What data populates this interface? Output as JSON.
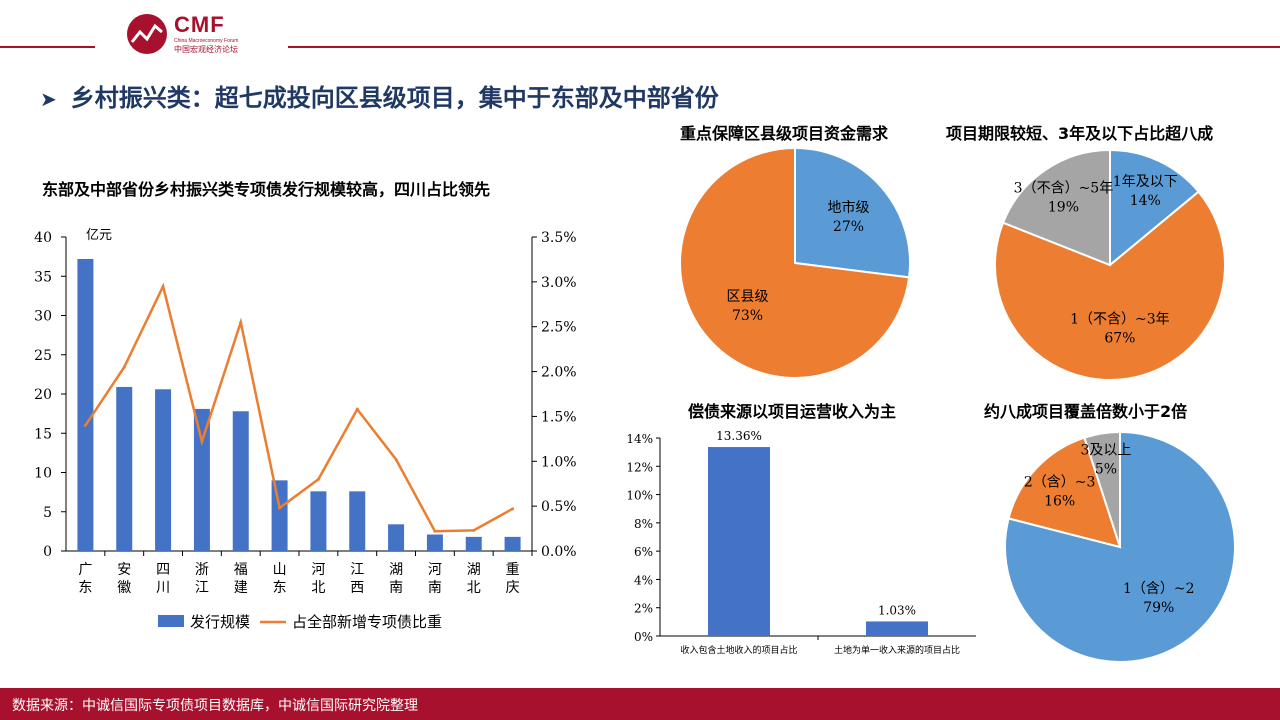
{
  "header": {
    "logo_text": "CMF",
    "logo_subtitle": "China Macroeconomy Forum",
    "logo_cn": "中国宏观经济论坛"
  },
  "section_title": "乡村振兴类：超七成投向区县级项目，集中于东部及中部省份",
  "footer_text": "数据来源：中诚信国际专项债项目数据库，中诚信国际研究院整理",
  "colors": {
    "brand": "#a8112e",
    "title_blue": "#1f3864",
    "bar_blue": "#4472c4",
    "line_orange": "#ed7d31",
    "pie_blue": "#5b9bd5",
    "pie_orange": "#ed7d31",
    "pie_gray": "#a5a5a5"
  },
  "chart_data": [
    {
      "type": "bar",
      "title": "东部及中部省份乡村振兴类专项债发行规模较高，四川占比领先",
      "categories": [
        "广东",
        "安徽",
        "四川",
        "浙江",
        "福建",
        "山东",
        "河北",
        "江西",
        "湖南",
        "河南",
        "湖北",
        "重庆"
      ],
      "ylabel": "亿元",
      "ylim": [
        0,
        40
      ],
      "y_ticks": [
        "0",
        "5",
        "10",
        "15",
        "20",
        "25",
        "30",
        "35",
        "40"
      ],
      "y2lim": [
        0,
        3.5
      ],
      "y2_ticks": [
        "0.0%",
        "0.5%",
        "1.0%",
        "1.5%",
        "2.0%",
        "2.5%",
        "3.0%",
        "3.5%"
      ],
      "series": [
        {
          "name": "发行规模",
          "type": "bar",
          "axis": "left",
          "values": [
            37.2,
            20.9,
            20.6,
            18.1,
            17.8,
            9.0,
            7.6,
            7.6,
            3.4,
            2.1,
            1.8,
            1.8
          ]
        },
        {
          "name": "占全部新增专项债比重",
          "type": "line",
          "axis": "right",
          "values": [
            1.4,
            2.05,
            2.95,
            1.22,
            2.55,
            0.48,
            0.8,
            1.58,
            1.02,
            0.22,
            0.23,
            0.47
          ]
        }
      ],
      "legend": "bottom",
      "grid": false
    },
    {
      "type": "pie",
      "title": "重点保障区县级项目资金需求",
      "slices": [
        {
          "label": "地市级",
          "value": 27,
          "value_label": "27%",
          "color": "#5b9bd5"
        },
        {
          "label": "区县级",
          "value": 73,
          "value_label": "73%",
          "color": "#ed7d31"
        }
      ]
    },
    {
      "type": "pie",
      "title": "项目期限较短、3年及以下占比超八成",
      "slices": [
        {
          "label": "1年及以下",
          "value": 14,
          "value_label": "14%",
          "color": "#5b9bd5"
        },
        {
          "label": "1（不含）~3年",
          "value": 67,
          "value_label": "67%",
          "color": "#ed7d31"
        },
        {
          "label": "3（不含）~5年",
          "value": 19,
          "value_label": "19%",
          "color": "#a5a5a5"
        }
      ]
    },
    {
      "type": "bar",
      "title": "偿债来源以项目运营收入为主",
      "categories": [
        "收入包含土地收入的项目占比",
        "土地为单一收入来源的项目占比"
      ],
      "values": [
        13.36,
        1.03
      ],
      "value_labels": [
        "13.36%",
        "1.03%"
      ],
      "ylim": [
        0,
        14
      ],
      "y_ticks": [
        "0%",
        "2%",
        "4%",
        "6%",
        "8%",
        "10%",
        "12%",
        "14%"
      ],
      "grid": false
    },
    {
      "type": "pie",
      "title": "约八成项目覆盖倍数小于2倍",
      "slices": [
        {
          "label": "1（含）~2",
          "value": 79,
          "value_label": "79%",
          "color": "#5b9bd5"
        },
        {
          "label": "2（含）~3",
          "value": 16,
          "value_label": "16%",
          "color": "#ed7d31"
        },
        {
          "label": "3及以上",
          "value": 5,
          "value_label": "5%",
          "color": "#a5a5a5"
        }
      ]
    }
  ]
}
